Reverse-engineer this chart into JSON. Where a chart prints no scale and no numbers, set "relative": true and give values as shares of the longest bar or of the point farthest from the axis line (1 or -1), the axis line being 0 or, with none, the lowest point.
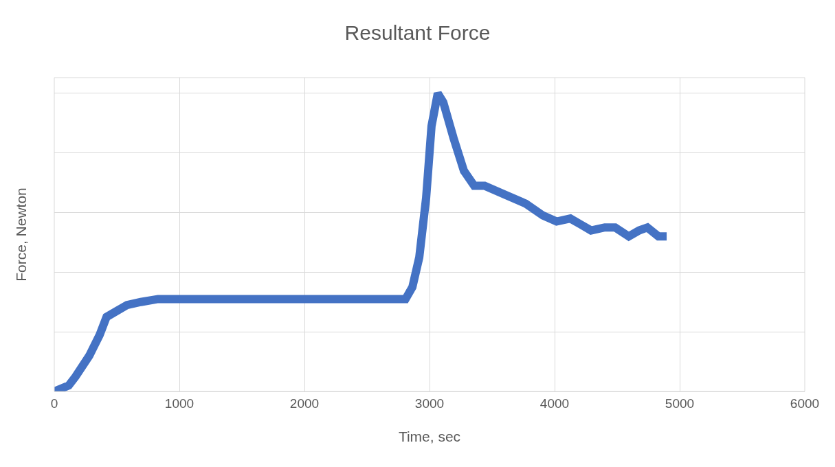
{
  "chart_data": {
    "type": "line",
    "title": "Resultant Force",
    "xlabel": "Time, sec",
    "ylabel": "Force, Newton",
    "relative": true,
    "grid": true,
    "marker": "none",
    "line_style": "solid",
    "xlim": [
      0,
      6000
    ],
    "xticks": [
      0,
      1000,
      2000,
      3000,
      4000,
      5000,
      6000
    ],
    "x": [
      0,
      115,
      170,
      280,
      363,
      418,
      500,
      582,
      692,
      830,
      995,
      1500,
      2000,
      2500,
      2808,
      2863,
      2918,
      2973,
      3016,
      3066,
      3110,
      3192,
      3275,
      3357,
      3440,
      3604,
      3769,
      3907,
      4016,
      4126,
      4209,
      4291,
      4401,
      4484,
      4593,
      4676,
      4742,
      4830,
      4896
    ],
    "series": [
      {
        "color": "#4472c4",
        "values": [
          0,
          0.02,
          0.05,
          0.12,
          0.19,
          0.25,
          0.27,
          0.29,
          0.3,
          0.31,
          0.31,
          0.31,
          0.31,
          0.31,
          0.31,
          0.35,
          0.45,
          0.65,
          0.89,
          1,
          0.97,
          0.85,
          0.74,
          0.69,
          0.69,
          0.66,
          0.63,
          0.59,
          0.57,
          0.58,
          0.56,
          0.54,
          0.55,
          0.55,
          0.52,
          0.54,
          0.55,
          0.52,
          0.52
        ]
      }
    ]
  }
}
